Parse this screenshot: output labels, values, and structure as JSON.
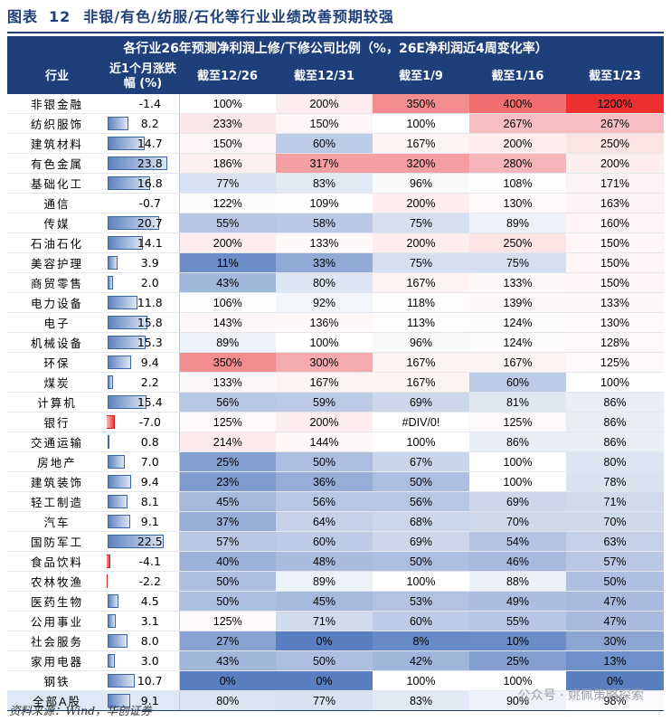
{
  "figure": {
    "label": "图表",
    "number": "12",
    "title": "非银/有色/纺服/石化等行业业绩改善预期较强"
  },
  "table": {
    "super_header": "各行业26年预测净利润上修/下修公司比例（%，26E净利润近4周变化率）",
    "col_industry": "行业",
    "col_change": "近1个月涨跌幅 (%)",
    "dates": [
      "截至12/26",
      "截至12/31",
      "截至1/9",
      "截至1/16",
      "截至1/23"
    ],
    "change_scale_max": 23.8,
    "rows": [
      {
        "industry": "非银金融",
        "change": -1.4,
        "change_label": "-1.4",
        "values": [
          "100%",
          "200%",
          "350%",
          "400%",
          "1200%"
        ],
        "num": [
          100,
          200,
          350,
          400,
          1200
        ]
      },
      {
        "industry": "纺织服饰",
        "change": 8.2,
        "change_label": "8.2",
        "values": [
          "233%",
          "150%",
          "100%",
          "267%",
          "267%"
        ],
        "num": [
          233,
          150,
          100,
          267,
          267
        ]
      },
      {
        "industry": "建筑材料",
        "change": 14.7,
        "change_label": "14.7",
        "values": [
          "150%",
          "60%",
          "167%",
          "200%",
          "250%"
        ],
        "num": [
          150,
          60,
          167,
          200,
          250
        ]
      },
      {
        "industry": "有色金属",
        "change": 23.8,
        "change_label": "23.8",
        "values": [
          "186%",
          "317%",
          "320%",
          "280%",
          "200%"
        ],
        "num": [
          186,
          317,
          320,
          280,
          200
        ]
      },
      {
        "industry": "基础化工",
        "change": 16.8,
        "change_label": "16.8",
        "values": [
          "77%",
          "83%",
          "96%",
          "108%",
          "171%"
        ],
        "num": [
          77,
          83,
          96,
          108,
          171
        ]
      },
      {
        "industry": "通信",
        "change": -0.7,
        "change_label": "-0.7",
        "values": [
          "122%",
          "109%",
          "200%",
          "130%",
          "163%"
        ],
        "num": [
          122,
          109,
          200,
          130,
          163
        ]
      },
      {
        "industry": "传媒",
        "change": 20.7,
        "change_label": "20.7",
        "values": [
          "55%",
          "58%",
          "75%",
          "89%",
          "160%"
        ],
        "num": [
          55,
          58,
          75,
          89,
          160
        ]
      },
      {
        "industry": "石油石化",
        "change": 14.1,
        "change_label": "14.1",
        "values": [
          "200%",
          "133%",
          "200%",
          "250%",
          "150%"
        ],
        "num": [
          200,
          133,
          200,
          250,
          150
        ]
      },
      {
        "industry": "美容护理",
        "change": 3.9,
        "change_label": "3.9",
        "values": [
          "11%",
          "33%",
          "75%",
          "75%",
          "150%"
        ],
        "num": [
          11,
          33,
          75,
          75,
          150
        ]
      },
      {
        "industry": "商贸零售",
        "change": 2.0,
        "change_label": "2.0",
        "values": [
          "43%",
          "80%",
          "167%",
          "133%",
          "150%"
        ],
        "num": [
          43,
          80,
          167,
          133,
          150
        ]
      },
      {
        "industry": "电力设备",
        "change": 11.8,
        "change_label": "11.8",
        "values": [
          "106%",
          "92%",
          "118%",
          "139%",
          "133%"
        ],
        "num": [
          106,
          92,
          118,
          139,
          133
        ]
      },
      {
        "industry": "电子",
        "change": 15.8,
        "change_label": "15.8",
        "values": [
          "143%",
          "136%",
          "113%",
          "124%",
          "130%"
        ],
        "num": [
          143,
          136,
          113,
          124,
          130
        ]
      },
      {
        "industry": "机械设备",
        "change": 15.3,
        "change_label": "15.3",
        "values": [
          "89%",
          "100%",
          "96%",
          "124%",
          "128%"
        ],
        "num": [
          89,
          100,
          96,
          124,
          128
        ]
      },
      {
        "industry": "环保",
        "change": 9.4,
        "change_label": "9.4",
        "values": [
          "350%",
          "300%",
          "167%",
          "167%",
          "125%"
        ],
        "num": [
          350,
          300,
          167,
          167,
          125
        ]
      },
      {
        "industry": "煤炭",
        "change": 2.2,
        "change_label": "2.2",
        "values": [
          "133%",
          "167%",
          "167%",
          "60%",
          "100%"
        ],
        "num": [
          133,
          167,
          167,
          60,
          100
        ]
      },
      {
        "industry": "计算机",
        "change": 15.4,
        "change_label": "15.4",
        "values": [
          "56%",
          "59%",
          "69%",
          "81%",
          "86%"
        ],
        "num": [
          56,
          59,
          69,
          81,
          86
        ]
      },
      {
        "industry": "银行",
        "change": -7.0,
        "change_label": "-7.0",
        "values": [
          "125%",
          "200%",
          "#DIV/0!",
          "125%",
          "86%"
        ],
        "num": [
          125,
          200,
          null,
          125,
          86
        ]
      },
      {
        "industry": "交通运输",
        "change": 0.8,
        "change_label": "0.8",
        "values": [
          "214%",
          "144%",
          "100%",
          "86%",
          "86%"
        ],
        "num": [
          214,
          144,
          100,
          86,
          86
        ]
      },
      {
        "industry": "房地产",
        "change": 7.0,
        "change_label": "7.0",
        "values": [
          "25%",
          "50%",
          "67%",
          "100%",
          "80%"
        ],
        "num": [
          25,
          50,
          67,
          100,
          80
        ]
      },
      {
        "industry": "建筑装饰",
        "change": 9.4,
        "change_label": "9.4",
        "values": [
          "23%",
          "36%",
          "50%",
          "100%",
          "78%"
        ],
        "num": [
          23,
          36,
          50,
          100,
          78
        ]
      },
      {
        "industry": "轻工制造",
        "change": 8.1,
        "change_label": "8.1",
        "values": [
          "45%",
          "56%",
          "56%",
          "69%",
          "71%"
        ],
        "num": [
          45,
          56,
          56,
          69,
          71
        ]
      },
      {
        "industry": "汽车",
        "change": 9.1,
        "change_label": "9.1",
        "values": [
          "37%",
          "64%",
          "68%",
          "70%",
          "70%"
        ],
        "num": [
          37,
          64,
          68,
          70,
          70
        ]
      },
      {
        "industry": "国防军工",
        "change": 22.5,
        "change_label": "22.5",
        "values": [
          "57%",
          "60%",
          "69%",
          "54%",
          "63%"
        ],
        "num": [
          57,
          60,
          69,
          54,
          63
        ]
      },
      {
        "industry": "食品饮料",
        "change": -4.1,
        "change_label": "-4.1",
        "values": [
          "40%",
          "48%",
          "50%",
          "46%",
          "57%"
        ],
        "num": [
          40,
          48,
          50,
          46,
          57
        ]
      },
      {
        "industry": "农林牧渔",
        "change": -2.2,
        "change_label": "-2.2",
        "values": [
          "50%",
          "89%",
          "100%",
          "88%",
          "50%"
        ],
        "num": [
          50,
          89,
          100,
          88,
          50
        ]
      },
      {
        "industry": "医药生物",
        "change": 4.5,
        "change_label": "4.5",
        "values": [
          "50%",
          "45%",
          "53%",
          "49%",
          "47%"
        ],
        "num": [
          50,
          45,
          53,
          49,
          47
        ]
      },
      {
        "industry": "公用事业",
        "change": 3.1,
        "change_label": "3.1",
        "values": [
          "125%",
          "71%",
          "60%",
          "55%",
          "47%"
        ],
        "num": [
          125,
          71,
          60,
          55,
          47
        ]
      },
      {
        "industry": "社会服务",
        "change": 8.0,
        "change_label": "8.0",
        "values": [
          "27%",
          "0%",
          "8%",
          "10%",
          "30%"
        ],
        "num": [
          27,
          0,
          8,
          10,
          30
        ]
      },
      {
        "industry": "家用电器",
        "change": 3.0,
        "change_label": "3.0",
        "values": [
          "43%",
          "50%",
          "42%",
          "25%",
          "13%"
        ],
        "num": [
          43,
          50,
          42,
          25,
          13
        ]
      },
      {
        "industry": "钢铁",
        "change": 10.7,
        "change_label": "10.7",
        "values": [
          "0%",
          "0%",
          "100%",
          "100%",
          "0%"
        ],
        "num": [
          0,
          0,
          100,
          100,
          0
        ]
      }
    ],
    "total": {
      "industry": "全部A股",
      "change": 9.1,
      "change_label": "9.1",
      "values": [
        "80%",
        "77%",
        "83%",
        "90%",
        "98%"
      ],
      "num": [
        80,
        77,
        83,
        90,
        98
      ]
    }
  },
  "source": "资料来源：Wind，华创证券",
  "watermark": "公众号 · 姚佩策略探索",
  "colors": {
    "header": "#1f3f7a",
    "blue": "#5a7fc0",
    "red": "#ec2f2f",
    "bar_blue": "#3d64a8",
    "bar_red": "#e8393a"
  }
}
